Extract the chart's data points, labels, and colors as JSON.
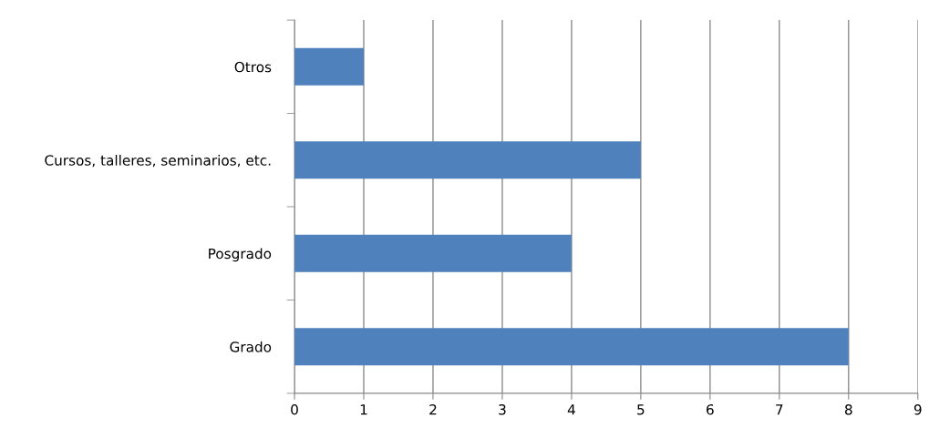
{
  "chart_data": {
    "type": "bar",
    "orientation": "horizontal",
    "categories": [
      "Otros",
      "Cursos, talleres, seminarios, etc.",
      "Posgrado",
      "Grado"
    ],
    "values": [
      1,
      5,
      4,
      8
    ],
    "color": "#4f81bd",
    "xlim": [
      0,
      9
    ],
    "xticks": [
      0,
      1,
      2,
      3,
      4,
      5,
      6,
      7,
      8,
      9
    ],
    "grid": "x"
  }
}
